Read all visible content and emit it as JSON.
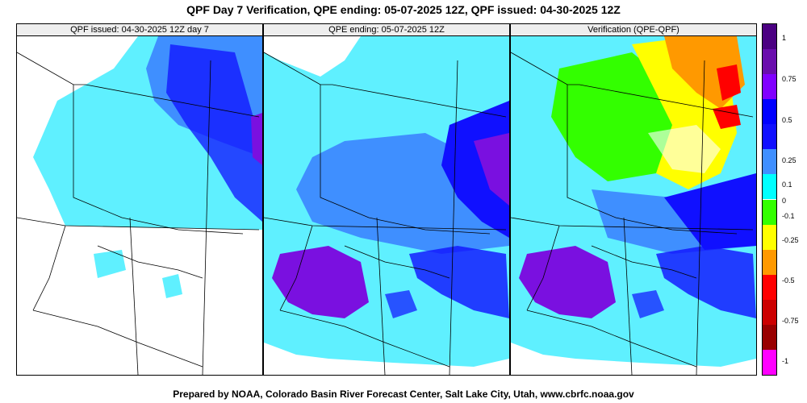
{
  "header": {
    "title": "QPF Day 7 Verification, QPE ending: 05-07-2025 12Z, QPF issued: 04-30-2025 12Z"
  },
  "panels": [
    {
      "label": "QPF issued: 04-30-2025 12Z day 7"
    },
    {
      "label": "QPE ending: 05-07-2025 12Z"
    },
    {
      "label": "Verification (QPE-QPF)"
    }
  ],
  "legend": {
    "labels": [
      "1",
      "0.75",
      "0.5",
      "0.25",
      "0.1",
      "0",
      "-0.1",
      "-0.25",
      "-0.5",
      "-0.75",
      "-1"
    ],
    "colors": [
      "#4b0082",
      "#6a0dad",
      "#8000ff",
      "#0000ff",
      "#1010ff",
      "#3f8fff",
      "#00ffff",
      "#33ff00",
      "#ffff00",
      "#ff9900",
      "#ff0000",
      "#cc0000",
      "#990000",
      "#ff00ff"
    ]
  },
  "colors": {
    "light_cyan": "#5ff0ff",
    "cyan": "#00ffff",
    "light_blue": "#3f8fff",
    "blue": "#1010ff",
    "purple": "#7a10e0",
    "green": "#33ff00",
    "yellow": "#ffff00",
    "orange": "#ff9900",
    "red": "#ff0000"
  },
  "footer": {
    "credit": "Prepared by NOAA, Colorado Basin River Forecast Center, Salt Lake City, Utah, www.cbrfc.noaa.gov"
  }
}
